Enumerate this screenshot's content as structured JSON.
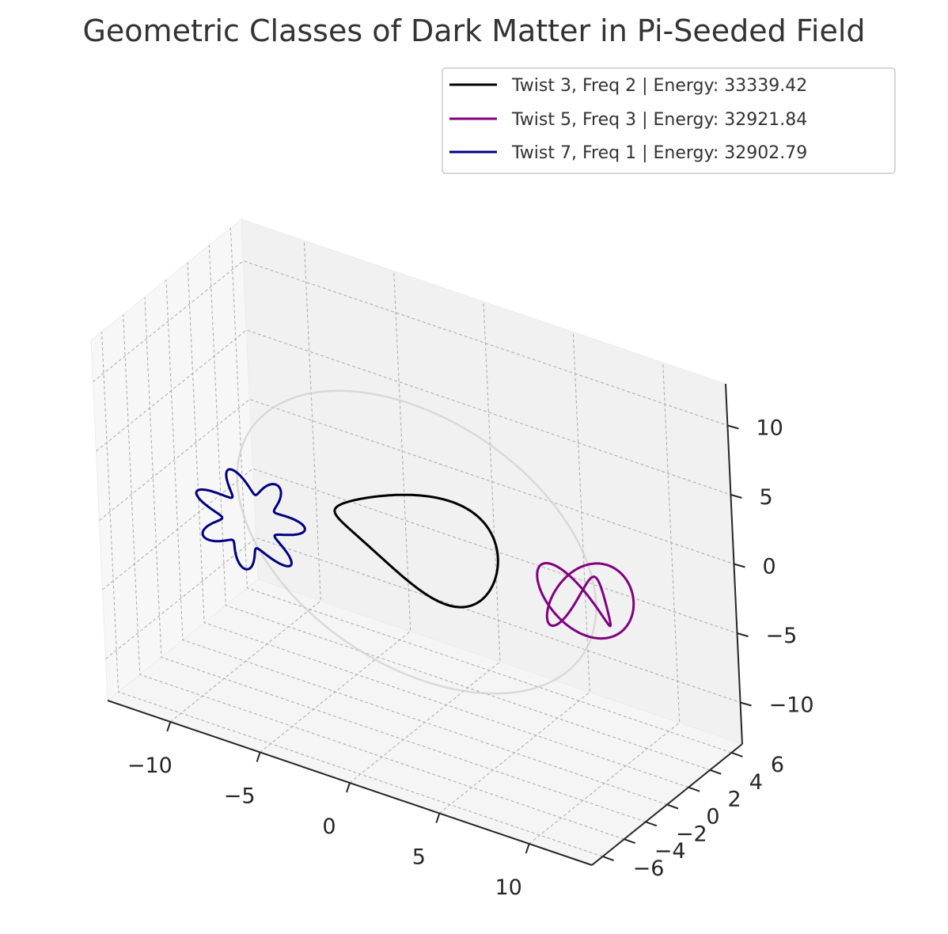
{
  "chart_data": {
    "type": "line3d",
    "title": "Geometric Classes of Dark Matter in Pi-Seeded Field",
    "xlabel": "",
    "ylabel": "",
    "zlabel": "",
    "x_ticks": [
      -10,
      -5,
      0,
      5,
      10
    ],
    "y_ticks": [
      -6,
      -4,
      -2,
      0,
      2,
      4,
      6
    ],
    "z_ticks": [
      -10,
      -5,
      0,
      5,
      10
    ],
    "x_tick_labels": [
      "−10",
      "−5",
      "0",
      "5",
      "10"
    ],
    "y_tick_labels": [
      "−6",
      "−4",
      "−2",
      "0",
      "2",
      "4",
      "6"
    ],
    "z_tick_labels": [
      "−10",
      "−5",
      "0",
      "5",
      "10"
    ],
    "xlim": [
      -13.5,
      13.5
    ],
    "ylim": [
      -7,
      7
    ],
    "zlim": [
      -13,
      13
    ],
    "grid": true,
    "legend_position": "top-right",
    "series": [
      {
        "name": "Twist 3, Freq 2 | Energy: 33339.42",
        "color": "#000000",
        "twist": 3,
        "freq": 2,
        "energy": 33339.42
      },
      {
        "name": "Twist 5, Freq 3 | Energy: 32921.84",
        "color": "#800080",
        "twist": 5,
        "freq": 3,
        "energy": 32921.84
      },
      {
        "name": "Twist 7, Freq 1 | Energy: 32902.79",
        "color": "#000080",
        "twist": 7,
        "freq": 1,
        "energy": 32902.79
      }
    ],
    "background_ring": {
      "color": "#d0d0d0",
      "radius": 10
    }
  }
}
